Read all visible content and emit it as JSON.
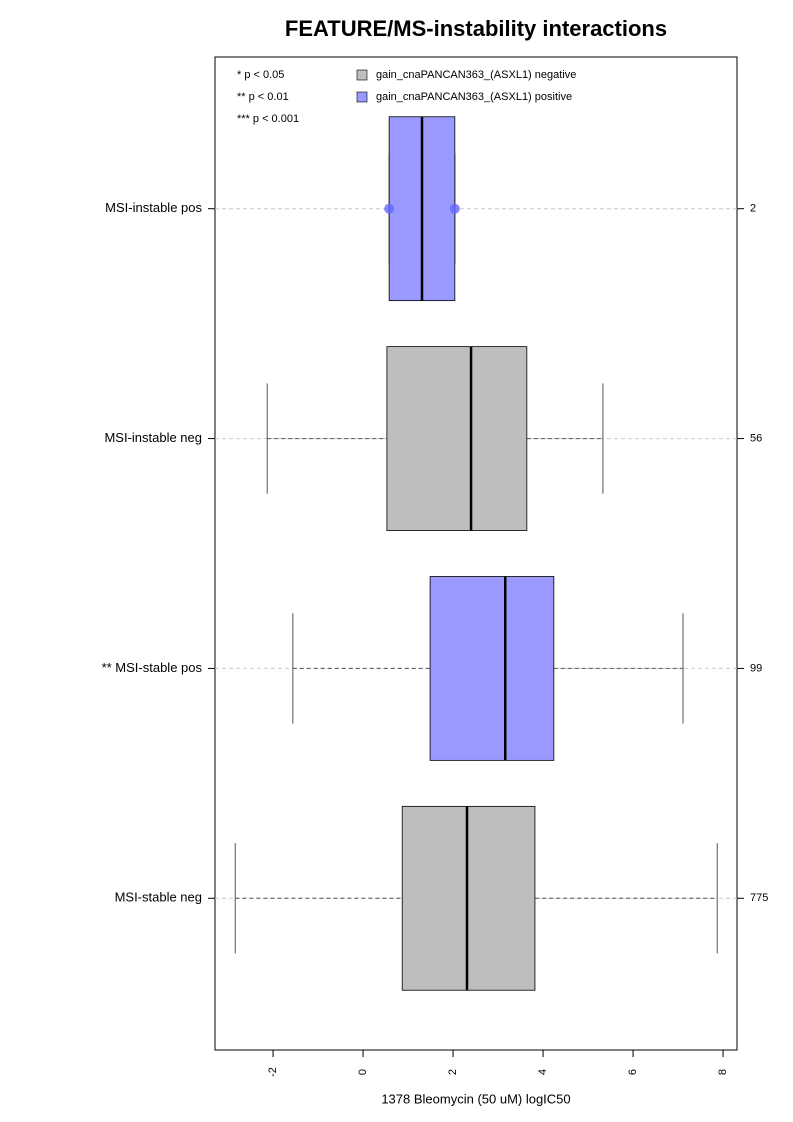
{
  "chart_data": {
    "type": "box",
    "title": "FEATURE/MS-instability interactions",
    "x_label": "1378 Bleomycin (50 uM) logIC50",
    "xlim": [
      -3.29,
      8.31
    ],
    "xticks": [
      -2,
      0,
      2,
      4,
      6,
      8
    ],
    "significance_legend": [
      "* p < 0.05",
      "** p < 0.01",
      "*** p < 0.001"
    ],
    "series": [
      {
        "name": "gain_cnaPANCAN363_(ASXL1) negative",
        "color": "#bebebe"
      },
      {
        "name": "gain_cnaPANCAN363_(ASXL1) positive",
        "color": "#9999ff"
      }
    ],
    "boxes": [
      {
        "category": "MSI-instable pos",
        "n": 2,
        "color": "#9999ff",
        "q1": 0.58,
        "median": 1.31,
        "q3": 2.04,
        "whisker_low": 0.58,
        "whisker_high": 2.04,
        "points": [
          0.58,
          2.04
        ]
      },
      {
        "category": "MSI-instable neg",
        "n": 56,
        "color": "#bebebe",
        "q1": 0.53,
        "median": 2.4,
        "q3": 3.64,
        "whisker_low": -2.13,
        "whisker_high": 5.33
      },
      {
        "category": "** MSI-stable pos",
        "n": 99,
        "color": "#9999ff",
        "q1": 1.49,
        "median": 3.16,
        "q3": 4.24,
        "whisker_low": -1.56,
        "whisker_high": 7.11
      },
      {
        "category": "MSI-stable neg",
        "n": 775,
        "color": "#bebebe",
        "q1": 0.87,
        "median": 2.31,
        "q3": 3.82,
        "whisker_low": -2.84,
        "whisker_high": 7.87
      }
    ]
  }
}
